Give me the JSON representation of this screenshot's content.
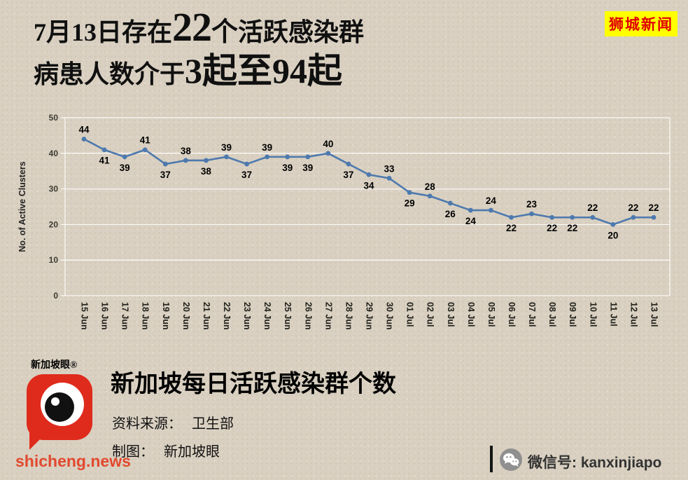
{
  "header": {
    "l1_pre": "7月13日存在",
    "l1_big": "22",
    "l1_mid": "个",
    "l1_post": "活跃感染群",
    "l2_pre": "病患人数介于",
    "l2_big": "3起至94起",
    "badge": "狮城新闻"
  },
  "chart_data": {
    "type": "line",
    "title": "新加坡每日活跃感染群个数",
    "ylabel": "No. of Active Clusters",
    "xlabel": "",
    "ylim": [
      0,
      50
    ],
    "yticks": [
      0,
      10,
      20,
      30,
      40,
      50
    ],
    "grid": "on",
    "legend": "none",
    "line_color": "#4d79ae",
    "grid_color": "#ffffff",
    "categories": [
      "15 Jun",
      "16 Jun",
      "17 Jun",
      "18 Jun",
      "19 Jun",
      "20 Jun",
      "21 Jun",
      "22 Jun",
      "23 Jun",
      "24 Jun",
      "25 Jun",
      "26 Jun",
      "27 Jun",
      "28 Jun",
      "29 Jun",
      "30 Jun",
      "01 Jul",
      "02 Jul",
      "03 Jul",
      "04 Jul",
      "05 Jul",
      "06 Jul",
      "07 Jul",
      "08 Jul",
      "09 Jul",
      "10 Jul",
      "11 Jul",
      "12 Jul",
      "13 Jul"
    ],
    "values": [
      44,
      41,
      39,
      41,
      37,
      38,
      38,
      39,
      37,
      39,
      39,
      39,
      40,
      37,
      34,
      33,
      29,
      28,
      26,
      24,
      24,
      22,
      23,
      22,
      22,
      22,
      20,
      22,
      22
    ],
    "label_pos": [
      "above",
      "below",
      "below",
      "above",
      "below",
      "above",
      "below",
      "above",
      "below",
      "above",
      "below",
      "below",
      "above",
      "below",
      "below",
      "above",
      "below",
      "above",
      "below",
      "below",
      "above",
      "below",
      "above",
      "below",
      "below",
      "above",
      "below",
      "above",
      "above"
    ]
  },
  "footer": {
    "logo_text": "新加坡眼®",
    "title": "新加坡每日活跃感染群个数",
    "source_label": "资料来源：",
    "source_value": "卫生部",
    "credit_label": "制图：",
    "credit_value": "新加坡眼",
    "site": "shicheng.news",
    "wechat": "微信号: kanxinjiapo"
  },
  "colors": {
    "background": "#d9d0c1",
    "badge_bg": "#ffff00",
    "badge_text": "#e00000",
    "line": "#4d79ae",
    "site_text": "#e2492e"
  }
}
